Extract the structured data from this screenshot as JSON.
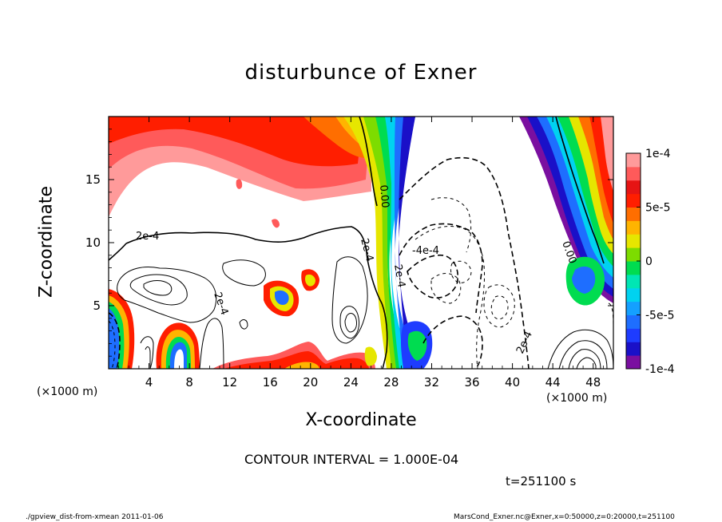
{
  "chart_data": {
    "type": "contour",
    "title": "disturbunce of Exner",
    "xlabel": "X-coordinate",
    "ylabel": "Z-coordinate",
    "x_unit": "(×1000 m)",
    "xlim": [
      0,
      50
    ],
    "ylim": [
      0,
      20
    ],
    "x_ticks": [
      4,
      8,
      12,
      16,
      20,
      24,
      28,
      32,
      36,
      40,
      44,
      48
    ],
    "y_ticks": [
      5,
      10,
      15
    ],
    "colorbar": {
      "range": [
        -0.0001,
        0.0001
      ],
      "tick_labels": [
        "1e-4",
        "5e-5",
        "0",
        "-5e-5",
        "-1e-4"
      ],
      "tick_values": [
        0.0001,
        5e-05,
        0,
        -5e-05,
        -0.0001
      ],
      "colors": [
        "#7a0fa0",
        "#1a10c8",
        "#1e3cff",
        "#1e6eff",
        "#14a0ff",
        "#00d2f0",
        "#00e6b4",
        "#00dc50",
        "#7ddc00",
        "#e6e600",
        "#ffb400",
        "#ff6e00",
        "#ff1e00",
        "#e61414",
        "#ff5a5a",
        "#ff9a9a"
      ]
    },
    "contour_interval": "1.000E-04",
    "contour_labels": [
      "2e-4",
      "2e-4",
      "2e-4",
      "0.00",
      "-4e-4",
      "2e-4",
      "2e-4",
      "0.00"
    ]
  },
  "annotations": {
    "contour_interval_text": "CONTOUR INTERVAL = 1.000E-04",
    "time_text": "t=251100 s",
    "script_name": "./gpview_dist-from-xmean  2011-01-06",
    "file_info": "MarsCond_Exner.nc@Exner,x=0:50000,z=0:20000,t=251100"
  }
}
